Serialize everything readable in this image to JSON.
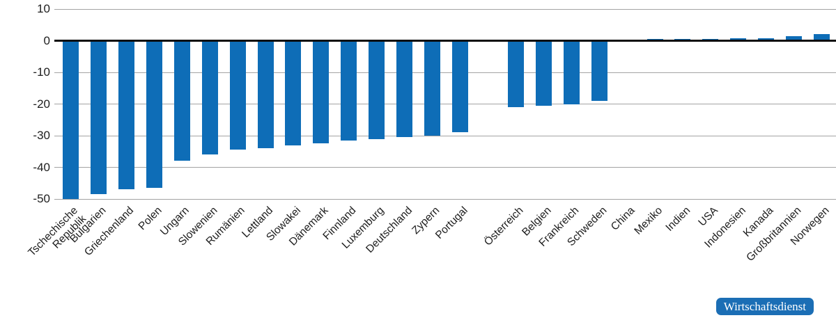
{
  "chart_data": {
    "type": "bar",
    "title": "",
    "xlabel": "",
    "ylabel": "",
    "ylim": [
      -50,
      10
    ],
    "yticks": [
      10,
      0,
      -10,
      -20,
      -30,
      -40,
      -50
    ],
    "grid": true,
    "legend": "none",
    "bar_color": "#0e6db7",
    "gridline_color": "#a3a3a3",
    "zero_line_color": "#0d0d0d",
    "gap_after": "Portugal",
    "categories": [
      "Tschechische\nRepublik",
      "Bulgarien",
      "Griechenland",
      "Polen",
      "Ungarn",
      "Slowenien",
      "Rumänien",
      "Lettland",
      "Slowakei",
      "Dänemark",
      "Finnland",
      "Luxemburg",
      "Deutschland",
      "Zypern",
      "Portugal",
      "Österreich",
      "Belgien",
      "Frankreich",
      "Schweden",
      "China",
      "Mexiko",
      "Indien",
      "USA",
      "Indonesien",
      "Kanada",
      "Großbritannien",
      "Norwegen"
    ],
    "values": [
      -50,
      -48.5,
      -47,
      -46.5,
      -38,
      -36,
      -34.5,
      -34,
      -33,
      -32.5,
      -31.5,
      -31,
      -30.5,
      -30,
      -29,
      -21,
      -20.5,
      -20,
      -19,
      0.4,
      0.5,
      0.5,
      0.6,
      0.8,
      0.8,
      1.4,
      2
    ]
  },
  "badge": {
    "label": "Wirtschaftsdienst",
    "bg_color": "#1b6eb5",
    "text_color": "#ffffff"
  }
}
